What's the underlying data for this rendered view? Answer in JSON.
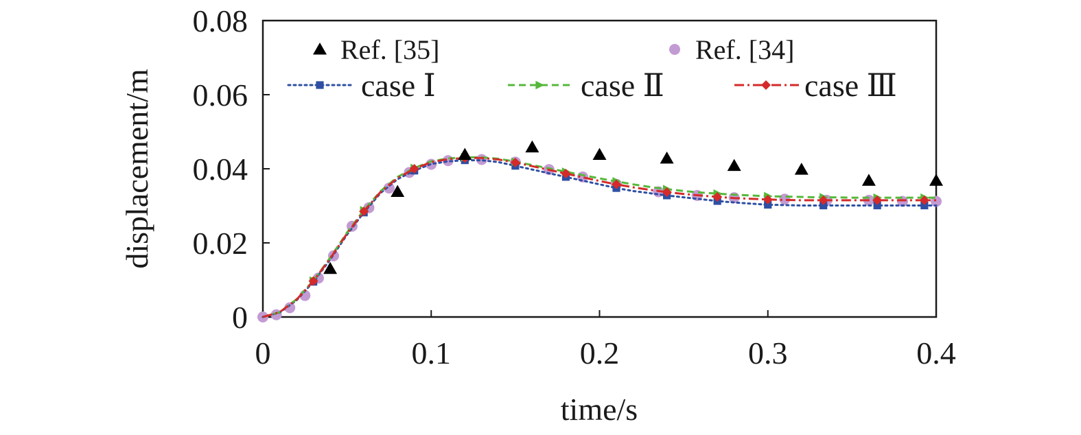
{
  "chart_data": {
    "type": "line",
    "xlabel": "time/s",
    "ylabel": "displacement/m",
    "xlim": [
      0,
      0.4
    ],
    "ylim": [
      0,
      0.08
    ],
    "x_ticks": [
      "0",
      "0.1",
      "0.2",
      "0.3",
      "0.4"
    ],
    "y_ticks": [
      "0",
      "0.02",
      "0.04",
      "0.06",
      "0.08"
    ],
    "grid": false,
    "legend_position": "top",
    "series": [
      {
        "name": "Ref. [35]",
        "style": "markers",
        "marker": "triangle",
        "color": "#000000",
        "x": [
          0.04,
          0.08,
          0.12,
          0.16,
          0.2,
          0.24,
          0.28,
          0.32,
          0.36,
          0.4
        ],
        "y": [
          0.013,
          0.0338,
          0.0438,
          0.0458,
          0.0438,
          0.0428,
          0.0408,
          0.0398,
          0.0368,
          0.0368
        ]
      },
      {
        "name": "Ref. [34]",
        "style": "markers",
        "marker": "circle",
        "color": "#c39bd3",
        "x": [
          0,
          0.008,
          0.016,
          0.025,
          0.033,
          0.042,
          0.053,
          0.063,
          0.075,
          0.087,
          0.1,
          0.11,
          0.13,
          0.15,
          0.17,
          0.19,
          0.21,
          0.235,
          0.258,
          0.28,
          0.31,
          0.335,
          0.36,
          0.38,
          0.4
        ],
        "y": [
          0,
          0.0006,
          0.0025,
          0.0058,
          0.0105,
          0.0165,
          0.0245,
          0.0295,
          0.0348,
          0.039,
          0.0412,
          0.0422,
          0.0425,
          0.0418,
          0.0398,
          0.0378,
          0.0358,
          0.0338,
          0.0328,
          0.0322,
          0.0318,
          0.0315,
          0.0315,
          0.0312,
          0.0312
        ]
      },
      {
        "name": "case Ⅰ",
        "style": "line",
        "dash": "dotted",
        "marker": "square",
        "color": "#2e4fa3",
        "x": [
          0,
          0.01,
          0.02,
          0.03,
          0.04,
          0.05,
          0.06,
          0.07,
          0.08,
          0.09,
          0.1,
          0.11,
          0.12,
          0.13,
          0.14,
          0.15,
          0.16,
          0.17,
          0.18,
          0.19,
          0.2,
          0.21,
          0.22,
          0.23,
          0.24,
          0.25,
          0.26,
          0.27,
          0.28,
          0.29,
          0.3,
          0.31,
          0.32,
          0.33,
          0.34,
          0.35,
          0.36,
          0.37,
          0.38,
          0.39,
          0.4
        ],
        "y": [
          0,
          0.0012,
          0.0045,
          0.0095,
          0.0155,
          0.0222,
          0.0282,
          0.0335,
          0.0372,
          0.0395,
          0.0413,
          0.042,
          0.0423,
          0.0423,
          0.0418,
          0.0408,
          0.0398,
          0.0388,
          0.0378,
          0.0368,
          0.0358,
          0.0348,
          0.034,
          0.0334,
          0.0328,
          0.0323,
          0.0318,
          0.0313,
          0.0309,
          0.0306,
          0.0303,
          0.0302,
          0.0301,
          0.0301,
          0.0301,
          0.0301,
          0.0301,
          0.0301,
          0.0301,
          0.0301,
          0.0301
        ],
        "marker_x": [
          0.03,
          0.06,
          0.09,
          0.12,
          0.15,
          0.18,
          0.21,
          0.24,
          0.27,
          0.3,
          0.333,
          0.365,
          0.393
        ]
      },
      {
        "name": "case Ⅱ",
        "style": "line",
        "dash": "dashed",
        "marker": "triangle-right",
        "color": "#55b83a",
        "x": [
          0,
          0.01,
          0.02,
          0.03,
          0.04,
          0.05,
          0.06,
          0.07,
          0.08,
          0.09,
          0.1,
          0.11,
          0.12,
          0.13,
          0.14,
          0.15,
          0.16,
          0.17,
          0.18,
          0.19,
          0.2,
          0.21,
          0.22,
          0.23,
          0.24,
          0.25,
          0.26,
          0.27,
          0.28,
          0.29,
          0.3,
          0.31,
          0.32,
          0.33,
          0.34,
          0.35,
          0.36,
          0.37,
          0.38,
          0.39,
          0.4
        ],
        "y": [
          0,
          0.0013,
          0.0048,
          0.0098,
          0.016,
          0.0228,
          0.0288,
          0.034,
          0.0378,
          0.0402,
          0.042,
          0.0428,
          0.0431,
          0.0431,
          0.0427,
          0.0419,
          0.041,
          0.0401,
          0.0392,
          0.0383,
          0.0374,
          0.0366,
          0.0358,
          0.0351,
          0.0345,
          0.034,
          0.0336,
          0.0333,
          0.033,
          0.0328,
          0.0326,
          0.0325,
          0.0324,
          0.0323,
          0.0323,
          0.0322,
          0.0322,
          0.0322,
          0.0322,
          0.0322,
          0.0322
        ],
        "marker_x": [
          0.03,
          0.06,
          0.09,
          0.12,
          0.15,
          0.18,
          0.21,
          0.24,
          0.27,
          0.3,
          0.333,
          0.365,
          0.393
        ]
      },
      {
        "name": "case Ⅲ",
        "style": "line",
        "dash": "dashdot",
        "marker": "diamond",
        "color": "#d42a2a",
        "x": [
          0,
          0.01,
          0.02,
          0.03,
          0.04,
          0.05,
          0.06,
          0.07,
          0.08,
          0.09,
          0.1,
          0.11,
          0.12,
          0.13,
          0.14,
          0.15,
          0.16,
          0.17,
          0.18,
          0.19,
          0.2,
          0.21,
          0.22,
          0.23,
          0.24,
          0.25,
          0.26,
          0.27,
          0.28,
          0.29,
          0.3,
          0.31,
          0.32,
          0.33,
          0.34,
          0.35,
          0.36,
          0.37,
          0.38,
          0.39,
          0.4
        ],
        "y": [
          0,
          0.0013,
          0.0047,
          0.0097,
          0.0158,
          0.0225,
          0.0285,
          0.0338,
          0.0375,
          0.04,
          0.0418,
          0.0426,
          0.0429,
          0.0429,
          0.0425,
          0.0417,
          0.0407,
          0.0397,
          0.0387,
          0.0377,
          0.0367,
          0.0358,
          0.035,
          0.0343,
          0.0337,
          0.0332,
          0.0328,
          0.0324,
          0.0321,
          0.0319,
          0.0317,
          0.0316,
          0.0315,
          0.0315,
          0.0315,
          0.0315,
          0.0315,
          0.0315,
          0.0315,
          0.0315,
          0.0315
        ],
        "marker_x": [
          0.03,
          0.06,
          0.09,
          0.12,
          0.15,
          0.18,
          0.21,
          0.24,
          0.27,
          0.3,
          0.333,
          0.365,
          0.393
        ]
      }
    ]
  }
}
